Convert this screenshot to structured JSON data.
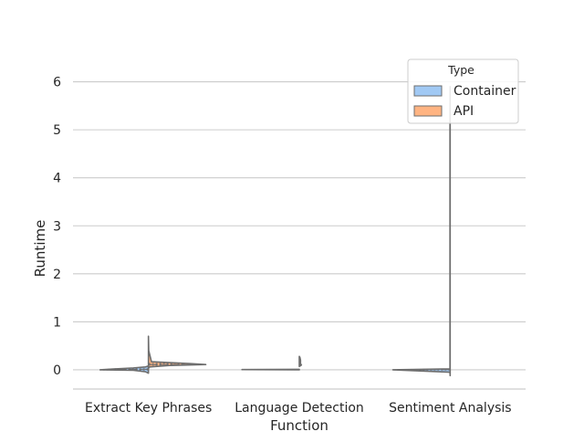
{
  "chart_data": {
    "type": "violin",
    "title": "",
    "xlabel": "Function",
    "ylabel": "Runtime",
    "categories": [
      "Extract Key Phrases",
      "Language Detection",
      "Sentiment Analysis"
    ],
    "ylim": [
      -0.4,
      6.6
    ],
    "yticks": [
      0,
      1,
      2,
      3,
      4,
      5,
      6
    ],
    "grid": "horizontal",
    "split": true,
    "legend": {
      "title": "Type",
      "placement": "top-right",
      "entries": [
        {
          "name": "Container",
          "color": "#a1c9f4"
        },
        {
          "name": "API",
          "color": "#ffb482"
        }
      ]
    },
    "series": [
      {
        "name": "Container",
        "color": "#a1c9f4",
        "side": "left",
        "violins": [
          {
            "category": "Extract Key Phrases",
            "profile": [
              [
                -0.07,
                0.0
              ],
              [
                -0.04,
                0.05
              ],
              [
                -0.01,
                0.25
              ],
              [
                0.0,
                0.8
              ],
              [
                0.02,
                0.55
              ],
              [
                0.04,
                0.25
              ],
              [
                0.06,
                0.05
              ],
              [
                0.08,
                0.0
              ]
            ],
            "quartiles": [
              0.0,
              0.01,
              0.02
            ]
          },
          {
            "category": "Language Detection",
            "profile": [
              [
                0.0,
                0.0
              ],
              [
                0.005,
                0.95
              ],
              [
                0.01,
                0.0
              ]
            ],
            "quartiles": [
              0.004,
              0.005,
              0.006
            ]
          },
          {
            "category": "Sentiment Analysis",
            "profile": [
              [
                -0.12,
                0.0
              ],
              [
                -0.05,
                0.003
              ],
              [
                0.0,
                0.95
              ],
              [
                0.02,
                0.003
              ],
              [
                0.4,
                0.003
              ],
              [
                5.0,
                0.003
              ],
              [
                5.9,
                0.0
              ]
            ],
            "quartiles": [
              0.0,
              0.005,
              0.01
            ]
          }
        ]
      },
      {
        "name": "API",
        "color": "#ffb482",
        "side": "right",
        "violins": [
          {
            "category": "Extract Key Phrases",
            "profile": [
              [
                0.03,
                0.0
              ],
              [
                0.06,
                0.02
              ],
              [
                0.09,
                0.35
              ],
              [
                0.11,
                0.95
              ],
              [
                0.13,
                0.7
              ],
              [
                0.15,
                0.35
              ],
              [
                0.17,
                0.05
              ],
              [
                0.4,
                0.005
              ],
              [
                0.7,
                0.0
              ]
            ],
            "quartiles": [
              0.1,
              0.11,
              0.13
            ]
          },
          {
            "category": "Language Detection",
            "profile": [
              [
                0.07,
                0.0
              ],
              [
                0.1,
                0.035
              ],
              [
                0.13,
                0.02
              ],
              [
                0.2,
                0.02
              ],
              [
                0.26,
                0.01
              ],
              [
                0.28,
                0.0
              ]
            ],
            "quartiles": [
              0.1,
              0.11,
              0.15
            ]
          },
          {
            "category": "Sentiment Analysis",
            "profile": [],
            "quartiles": []
          }
        ]
      }
    ]
  }
}
